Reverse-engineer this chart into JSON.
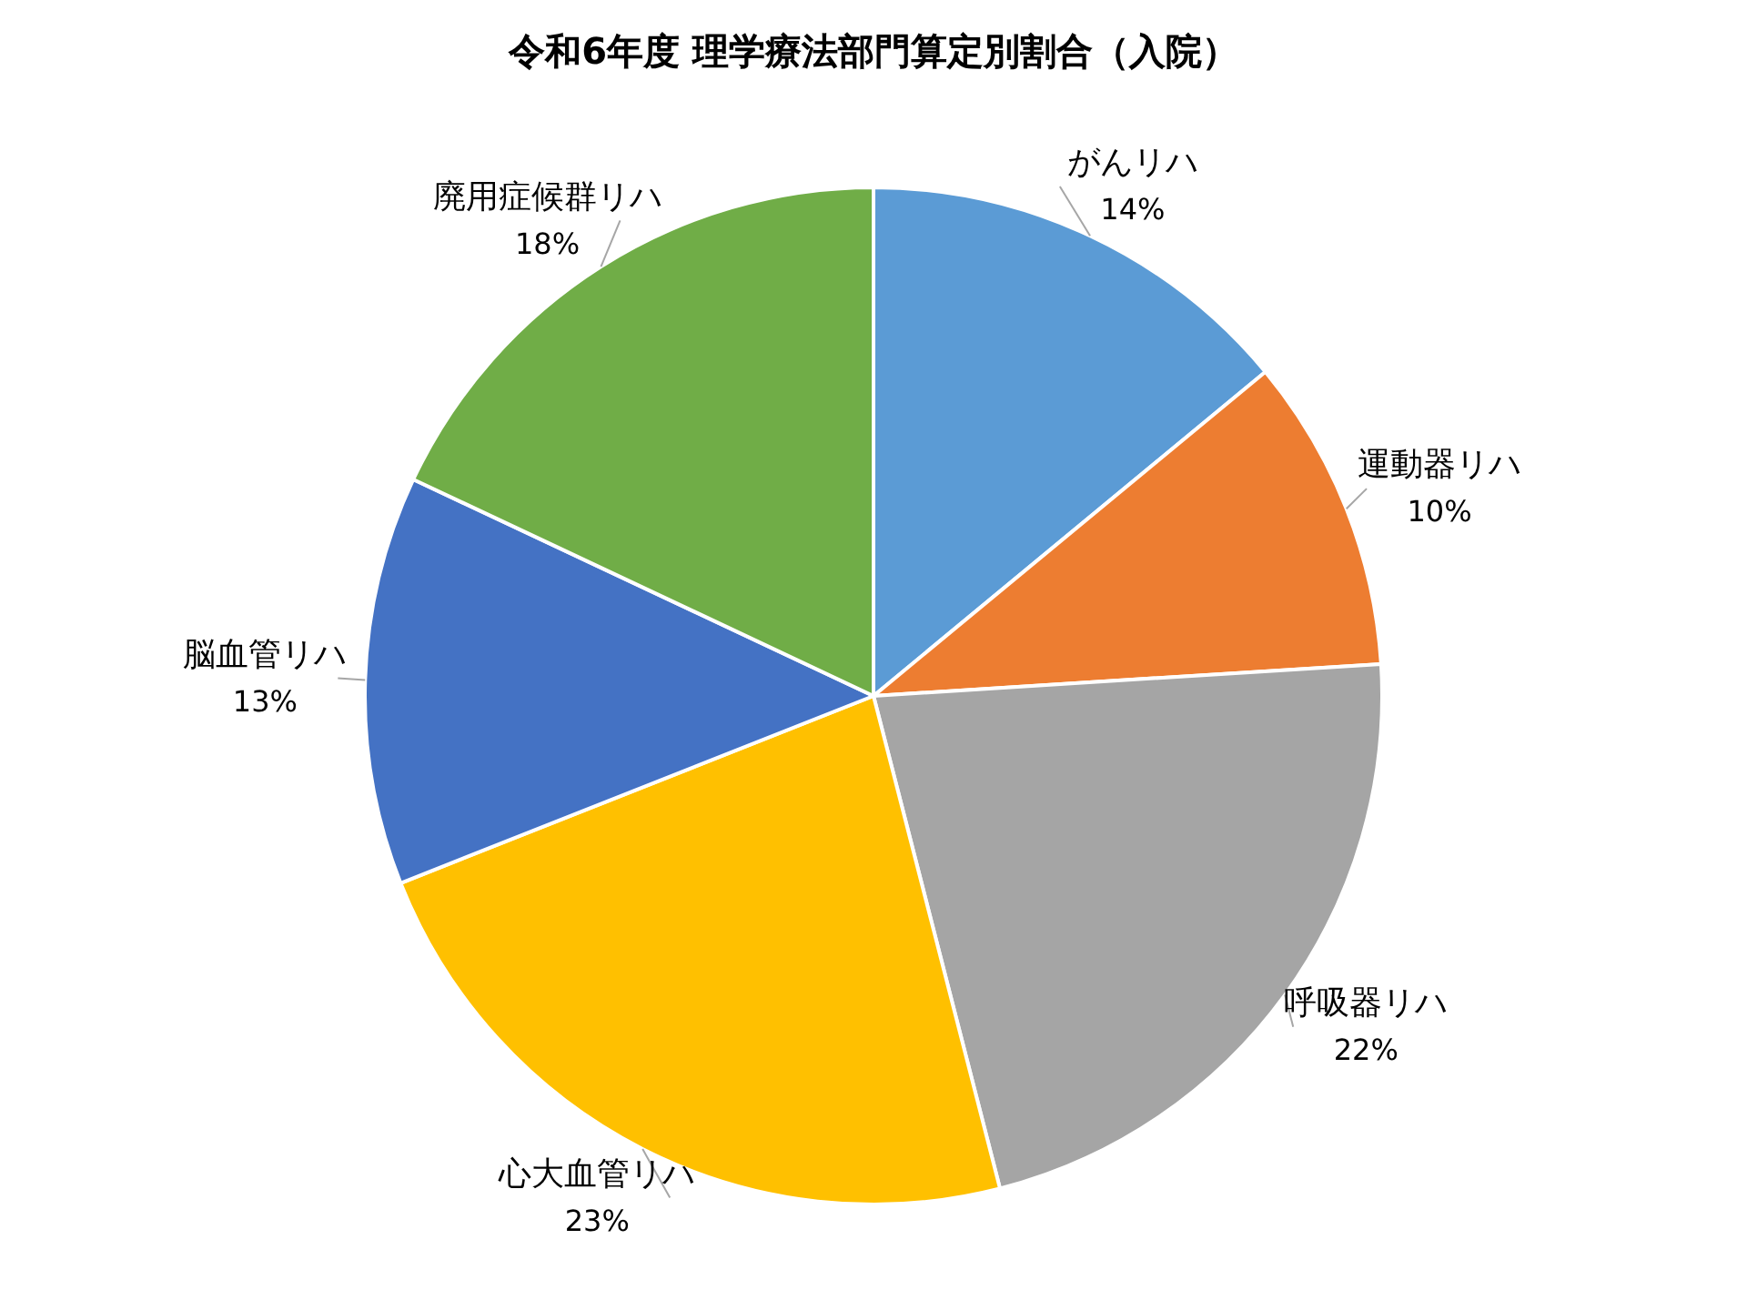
{
  "chart_data": {
    "type": "pie",
    "title": "令和6年度 理学療法部門算定別割合（入院）",
    "categories": [
      "がんリハ",
      "運動器リハ",
      "呼吸器リハ",
      "心大血管リハ",
      "脳血管リハ",
      "廃用症候群リハ"
    ],
    "values": [
      14,
      10,
      22,
      23,
      13,
      18
    ],
    "colors": [
      "#5b9bd5",
      "#ed7d31",
      "#a5a5a5",
      "#ffc000",
      "#4472c4",
      "#70ad47"
    ],
    "value_labels": [
      "14%",
      "10%",
      "22%",
      "23%",
      "13%",
      "18%"
    ],
    "legend": false
  }
}
